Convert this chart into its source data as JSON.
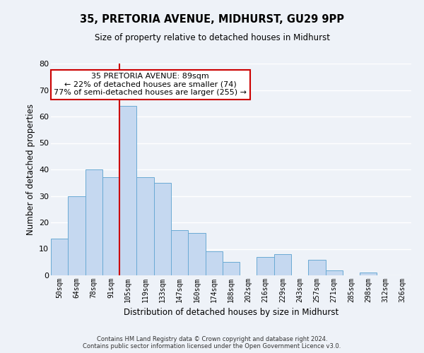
{
  "title": "35, PRETORIA AVENUE, MIDHURST, GU29 9PP",
  "subtitle": "Size of property relative to detached houses in Midhurst",
  "xlabel": "Distribution of detached houses by size in Midhurst",
  "ylabel": "Number of detached properties",
  "bar_color": "#c5d8f0",
  "bar_edge_color": "#6aaad4",
  "background_color": "#eef2f8",
  "grid_color": "#ffffff",
  "bin_labels": [
    "50sqm",
    "64sqm",
    "78sqm",
    "91sqm",
    "105sqm",
    "119sqm",
    "133sqm",
    "147sqm",
    "160sqm",
    "174sqm",
    "188sqm",
    "202sqm",
    "216sqm",
    "229sqm",
    "243sqm",
    "257sqm",
    "271sqm",
    "285sqm",
    "298sqm",
    "312sqm",
    "326sqm"
  ],
  "bar_heights": [
    14,
    30,
    40,
    37,
    64,
    37,
    35,
    17,
    16,
    9,
    5,
    0,
    7,
    8,
    0,
    6,
    2,
    0,
    1,
    0,
    0
  ],
  "ylim": [
    0,
    80
  ],
  "yticks": [
    0,
    10,
    20,
    30,
    40,
    50,
    60,
    70,
    80
  ],
  "vline_x_index": 3.5,
  "vline_color": "#cc0000",
  "annotation_line1": "35 PRETORIA AVENUE: 89sqm",
  "annotation_line2": "← 22% of detached houses are smaller (74)",
  "annotation_line3": "77% of semi-detached houses are larger (255) →",
  "annotation_box_color": "#ffffff",
  "annotation_border_color": "#cc0000",
  "footer_line1": "Contains HM Land Registry data © Crown copyright and database right 2024.",
  "footer_line2": "Contains public sector information licensed under the Open Government Licence v3.0."
}
